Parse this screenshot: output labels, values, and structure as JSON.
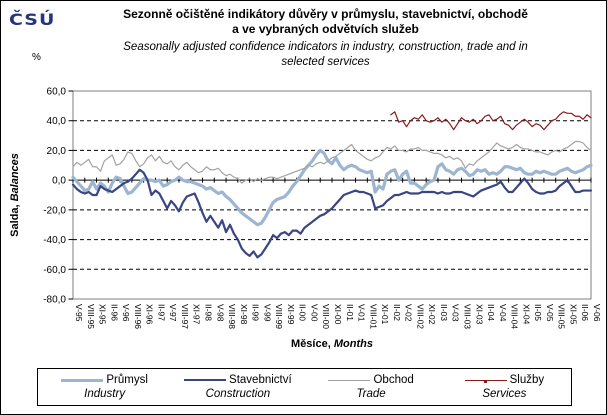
{
  "logo_text": "ČSÚ",
  "header": {
    "title_cs_line1": "Sezonně očištěné indikátory důvěry v průmyslu, stavebnictví, obchodě",
    "title_cs_line2": "a ve vybraných odvětvích služeb",
    "subtitle_en_line1": "Seasonally adjusted confidence indicators in industry, construction, trade and in",
    "subtitle_en_line2": "selected services",
    "unit_label": "%"
  },
  "axes": {
    "y_title_cs": "Salda,",
    "y_title_en": "Balances",
    "x_title_cs": "Měsíce,",
    "x_title_en": "Months"
  },
  "chart_data": {
    "type": "line",
    "title": "Sezonně očištěné indikátory důvěry / Seasonally adjusted confidence indicators",
    "ylabel": "Salda, Balances",
    "xlabel": "Měsíce, Months",
    "ylim": [
      -80,
      60
    ],
    "grid": "horizontal-dashed",
    "legend_position": "bottom",
    "y_tick_values": [
      60,
      40,
      20,
      0,
      -20,
      -40,
      -60,
      -80
    ],
    "y_tick_labels": [
      "60,0",
      "40,0",
      "20,0",
      "0,0",
      "-20,0",
      "-40,0",
      "-60,0",
      "-80,0"
    ],
    "months_per_x_tick": 3,
    "x_tick_labels": [
      "V-95",
      "VIII-95",
      "XI-95",
      "II-96",
      "V-96",
      "VIII-96",
      "XI-96",
      "II-97",
      "V-97",
      "VIII-97",
      "XI-97",
      "II-98",
      "V-98",
      "VIII-98",
      "XI-98",
      "II-99",
      "V-99",
      "VIII-99",
      "XI-99",
      "II-00",
      "V-00",
      "VIII-00",
      "XI-00",
      "II-01",
      "V-01",
      "VIII-01",
      "XI-01",
      "II-02",
      "V-02",
      "VIII-02",
      "XI-02",
      "II-03",
      "V-03",
      "VIII-03",
      "XI-03",
      "II-04",
      "V-04",
      "VIII-04",
      "XI-04",
      "II-05",
      "V-05",
      "VIII-05",
      "XI-05",
      "II-06",
      "V-06"
    ],
    "series": [
      {
        "name_cs": "Průmysl",
        "name_en": "Industry",
        "color": "#9CB6D2",
        "stroke_width": 3.2,
        "marker": false,
        "start_index": 0,
        "values": [
          2,
          -1,
          -4,
          -7,
          -6,
          -1,
          -6,
          -2,
          -4,
          -8,
          -2,
          2,
          1,
          -4,
          -9,
          -8,
          -5,
          -2,
          1,
          0,
          0,
          -1,
          0,
          -4,
          -3,
          -1,
          0,
          2,
          0,
          -1,
          -1,
          -2,
          -3,
          -4,
          -6,
          -5,
          -7,
          -9,
          -8,
          -11,
          -13,
          -16,
          -19,
          -22,
          -24,
          -26,
          -28,
          -30,
          -29,
          -25,
          -20,
          -15,
          -13,
          -12,
          -11,
          -8,
          -4,
          -1,
          3,
          7,
          10,
          13,
          17,
          20,
          18,
          13,
          11,
          15,
          10,
          7,
          9,
          10,
          9,
          7,
          6,
          5,
          6,
          -8,
          -4,
          -6,
          4,
          6,
          7,
          0,
          4,
          6,
          -2,
          -2,
          -4,
          -6,
          -3,
          -1,
          0,
          9,
          11,
          7,
          6,
          4,
          7,
          8,
          6,
          3,
          4,
          7,
          6,
          7,
          4,
          5,
          4,
          6,
          9,
          9,
          8,
          7,
          8,
          5,
          4,
          4,
          6,
          5,
          6,
          5,
          4,
          4,
          6,
          7,
          8,
          6,
          5,
          6,
          7,
          9,
          10
        ]
      },
      {
        "name_cs": "Stavebnictví",
        "name_en": "Construction",
        "color": "#3A4584",
        "stroke_width": 2.2,
        "marker": false,
        "start_index": 0,
        "values": [
          -3,
          -6,
          -8,
          -9,
          -8,
          -10,
          -10,
          -4,
          -6,
          -7,
          -8,
          -6,
          -4,
          -2,
          -1,
          1,
          4,
          7,
          5,
          0,
          -10,
          -7,
          -9,
          -14,
          -19,
          -14,
          -17,
          -21,
          -15,
          -11,
          -10,
          -9,
          -15,
          -22,
          -28,
          -24,
          -28,
          -32,
          -27,
          -35,
          -30,
          -36,
          -40,
          -46,
          -49,
          -51,
          -48,
          -52,
          -50,
          -46,
          -42,
          -37,
          -39,
          -36,
          -35,
          -37,
          -34,
          -34,
          -36,
          -32,
          -30,
          -28,
          -26,
          -24,
          -23,
          -21,
          -19,
          -16,
          -13,
          -10,
          -9,
          -8,
          -7,
          -8,
          -8,
          -9,
          -10,
          -19,
          -18,
          -17,
          -14,
          -12,
          -10,
          -10,
          -9,
          -8,
          -9,
          -9,
          -9,
          -8,
          -8,
          -8,
          -8,
          -9,
          -8,
          -9,
          -9,
          -8,
          -8,
          -8,
          -9,
          -10,
          -11,
          -9,
          -7,
          -6,
          -5,
          -4,
          -3,
          -1,
          -5,
          -8,
          -8,
          -5,
          -2,
          1,
          -2,
          -6,
          -8,
          -9,
          -9,
          -8,
          -8,
          -7,
          -4,
          -2,
          0,
          -4,
          -8,
          -8,
          -7,
          -7,
          -7
        ]
      },
      {
        "name_cs": "Obchod",
        "name_en": "Trade",
        "color": "#A3A3A3",
        "stroke_width": 1.2,
        "marker": false,
        "start_index": 0,
        "values": [
          9,
          12,
          10,
          12,
          14,
          9,
          9,
          6,
          13,
          15,
          17,
          10,
          11,
          14,
          19,
          18,
          13,
          9,
          11,
          15,
          17,
          13,
          16,
          12,
          11,
          13,
          9,
          7,
          10,
          12,
          9,
          7,
          5,
          6,
          9,
          7,
          7,
          8,
          5,
          3,
          4,
          2,
          1,
          -2,
          0,
          1,
          -1,
          1,
          0,
          1,
          2,
          2,
          1,
          2,
          3,
          4,
          5,
          6,
          7,
          8,
          10,
          9,
          11,
          12,
          11,
          13,
          15,
          16,
          18,
          20,
          22,
          24,
          20,
          18,
          16,
          14,
          13,
          15,
          16,
          19,
          22,
          21,
          23,
          20,
          20,
          19,
          21,
          21,
          22,
          20,
          20,
          19,
          18,
          18,
          17,
          15,
          16,
          14,
          15,
          13,
          8,
          11,
          10,
          13,
          15,
          17,
          19,
          22,
          25,
          23,
          22,
          21,
          22,
          24,
          22,
          21,
          21,
          20,
          19,
          19,
          18,
          17,
          19,
          20,
          19,
          21,
          22,
          24,
          26,
          26,
          25,
          22,
          20
        ]
      },
      {
        "name_cs": "Služby",
        "name_en": "Services",
        "color": "#8C1A1C",
        "stroke_width": 1.2,
        "marker": true,
        "start_index": 81,
        "values": [
          44,
          46,
          39,
          40,
          36,
          40,
          42,
          41,
          44,
          40,
          39,
          40,
          42,
          39,
          41,
          38,
          34,
          38,
          42,
          40,
          39,
          41,
          38,
          40,
          43,
          44,
          40,
          41,
          43,
          38,
          37,
          34,
          37,
          39,
          41,
          39,
          36,
          38,
          37,
          34,
          37,
          40,
          41,
          44,
          46,
          45,
          45,
          43,
          43,
          41,
          44,
          42
        ]
      }
    ]
  }
}
